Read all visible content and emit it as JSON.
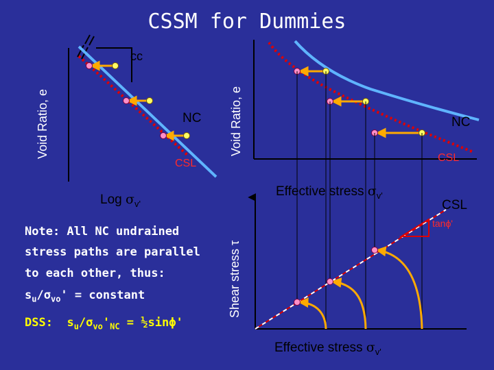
{
  "title": "CSSM for Dummies",
  "left_plot": {
    "y_label": "Void Ratio, e",
    "x_label_prefix": "Log ",
    "x_label_symbol": "σ",
    "x_label_suffix": "v'",
    "slope_label": "cc",
    "nc_label": "NC",
    "csl_label": "CSL"
  },
  "right_plot": {
    "y_label": "Void Ratio, e",
    "x_label_prefix": "Effective stress ",
    "x_label_symbol": "σ",
    "x_label_suffix": "v'",
    "nc_label": "NC",
    "csl_label": "CSL"
  },
  "stress_plot": {
    "y_label": "Shear stress τ",
    "x_label_prefix": "Effective stress ",
    "x_label_symbol": "σ",
    "x_label_suffix": "v'",
    "csl_label": "CSL",
    "slope_label": "tanϕ'"
  },
  "note": {
    "line1": "Note: All NC undrained",
    "line2": "stress paths are parallel",
    "line3": "to each other, thus:",
    "line4_a": "s",
    "line4_b": "u",
    "line4_c": "/σ",
    "line4_d": "vo",
    "line4_e": "' = constant"
  },
  "dss": {
    "prefix": "DSS:",
    "a": "s",
    "b": "u",
    "c": "/σ",
    "d": "vo",
    "e": "'",
    "f": "NC",
    "g": " = ½sinϕ'"
  },
  "colors": {
    "background": "#2a2f9a",
    "nc_line": "#5fb4ff",
    "csl_line": "#e00000",
    "arrow": "#ffaa00",
    "nc_point": "#ffff66",
    "csl_point": "#ff8fc8",
    "guide": "#000000"
  }
}
